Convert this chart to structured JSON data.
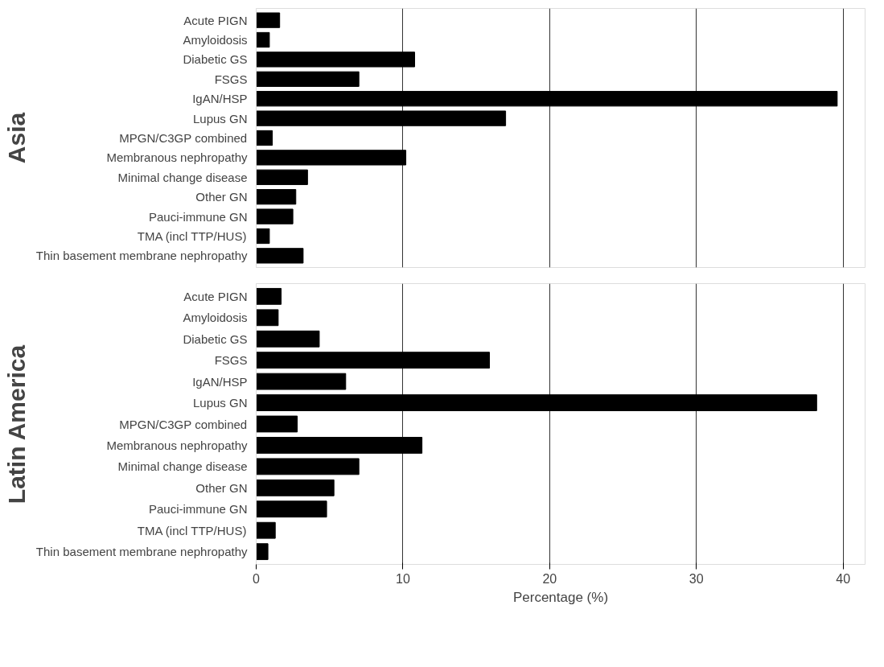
{
  "chart_data": [
    {
      "type": "bar",
      "orientation": "horizontal",
      "ylabel": "Asia",
      "categories": [
        "Acute PIGN",
        "Amyloidosis",
        "Diabetic GS",
        "FSGS",
        "IgAN/HSP",
        "Lupus GN",
        "MPGN/C3GP combined",
        "Membranous nephropathy",
        "Minimal change disease",
        "Other GN",
        "Pauci-immune GN",
        "TMA (incl TTP/HUS)",
        "Thin basement membrane nephropathy"
      ],
      "values": [
        1.6,
        0.9,
        10.8,
        7.0,
        39.6,
        17.0,
        1.1,
        10.2,
        3.5,
        2.7,
        2.5,
        0.9,
        3.2
      ],
      "color": "#000000",
      "xlim": [
        0,
        41.5
      ],
      "xticks": [
        0,
        10,
        20,
        30,
        40
      ],
      "grid": "x",
      "tick_labels": "y"
    },
    {
      "type": "bar",
      "orientation": "horizontal",
      "ylabel": "Latin America",
      "xlabel": "Percentage (%)",
      "categories": [
        "Acute PIGN",
        "Amyloidosis",
        "Diabetic GS",
        "FSGS",
        "IgAN/HSP",
        "Lupus GN",
        "MPGN/C3GP combined",
        "Membranous nephropathy",
        "Minimal change disease",
        "Other GN",
        "Pauci-immune GN",
        "TMA (incl TTP/HUS)",
        "Thin basement membrane nephropathy"
      ],
      "values": [
        1.7,
        1.5,
        4.3,
        15.9,
        6.1,
        38.2,
        2.8,
        11.3,
        7.0,
        5.3,
        4.8,
        1.3,
        0.8
      ],
      "color": "#000000",
      "xlim": [
        0,
        41.5
      ],
      "xticks": [
        0,
        10,
        20,
        30,
        40
      ],
      "grid": "x"
    }
  ]
}
